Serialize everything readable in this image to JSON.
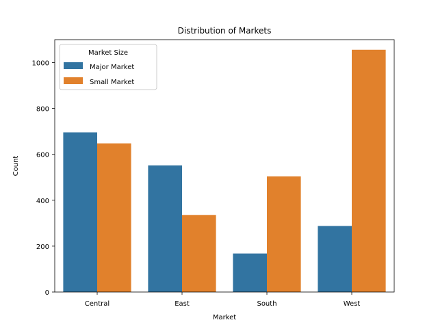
{
  "chart_data": {
    "type": "bar",
    "title": "Distribution of Markets",
    "xlabel": "Market",
    "ylabel": "Count",
    "categories": [
      "Central",
      "East",
      "South",
      "West"
    ],
    "series": [
      {
        "name": "Major Market",
        "color": "#3274a1",
        "values": [
          696,
          552,
          168,
          288
        ]
      },
      {
        "name": "Small Market",
        "color": "#e1812c",
        "values": [
          648,
          336,
          504,
          1056
        ]
      }
    ],
    "ylim": [
      0,
      1100
    ],
    "yticks": [
      0,
      200,
      400,
      600,
      800,
      1000
    ],
    "legend": {
      "title": "Market Size",
      "position": "upper-left"
    },
    "grid": false
  }
}
